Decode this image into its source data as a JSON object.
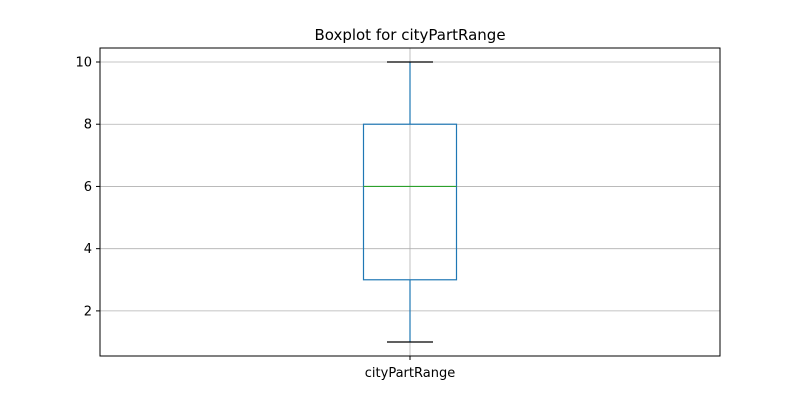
{
  "chart_data": {
    "type": "boxplot",
    "title": "Boxplot for cityPartRange",
    "xlabel": "",
    "ylabel": "",
    "categories": [
      "cityPartRange"
    ],
    "boxes": [
      {
        "category": "cityPartRange",
        "whisker_low": 1,
        "q1": 3,
        "median": 6,
        "q3": 8,
        "whisker_high": 10
      }
    ],
    "yticks": [
      2,
      4,
      6,
      8,
      10
    ],
    "ylim": [
      0.55,
      10.45
    ],
    "grid": true,
    "colors": {
      "box": "#1f77b4",
      "median": "#2ca02c",
      "whisker_cap": "#000000",
      "grid": "#b0b0b0"
    }
  }
}
